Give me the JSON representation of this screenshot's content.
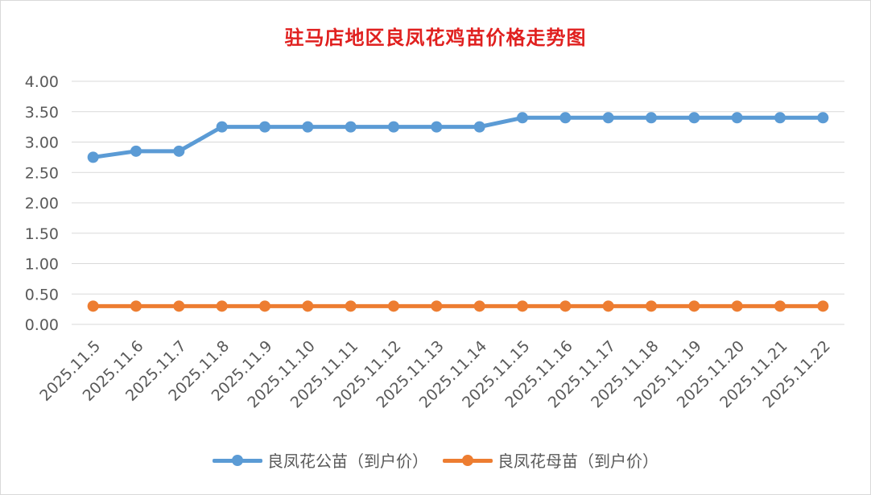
{
  "chart_data": {
    "type": "line",
    "title": "驻马店地区良凤花鸡苗价格走势图",
    "categories": [
      "2025.11.5",
      "2025.11.6",
      "2025.11.7",
      "2025.11.8",
      "2025.11.9",
      "2025.11.10",
      "2025.11.11",
      "2025.11.12",
      "2025.11.13",
      "2025.11.14",
      "2025.11.15",
      "2025.11.16",
      "2025.11.17",
      "2025.11.18",
      "2025.11.19",
      "2025.11.20",
      "2025.11.21",
      "2025.11.22"
    ],
    "series": [
      {
        "name": "良凤花公苗（到户价）",
        "color": "#5b9bd5",
        "values": [
          2.75,
          2.85,
          2.85,
          3.25,
          3.25,
          3.25,
          3.25,
          3.25,
          3.25,
          3.25,
          3.4,
          3.4,
          3.4,
          3.4,
          3.4,
          3.4,
          3.4,
          3.4
        ]
      },
      {
        "name": "良凤花母苗（到户价）",
        "color": "#ed7d31",
        "values": [
          0.3,
          0.3,
          0.3,
          0.3,
          0.3,
          0.3,
          0.3,
          0.3,
          0.3,
          0.3,
          0.3,
          0.3,
          0.3,
          0.3,
          0.3,
          0.3,
          0.3,
          0.3
        ]
      }
    ],
    "yticks": [
      "0.00",
      "0.50",
      "1.00",
      "1.50",
      "2.00",
      "2.50",
      "3.00",
      "3.50",
      "4.00"
    ],
    "ylim": [
      0,
      4
    ],
    "xlabel": "",
    "ylabel": "",
    "grid": true,
    "legend": "bottom",
    "title_color": "#e0201f",
    "grid_color": "#d9d9d9",
    "tick_color": "#595959"
  }
}
